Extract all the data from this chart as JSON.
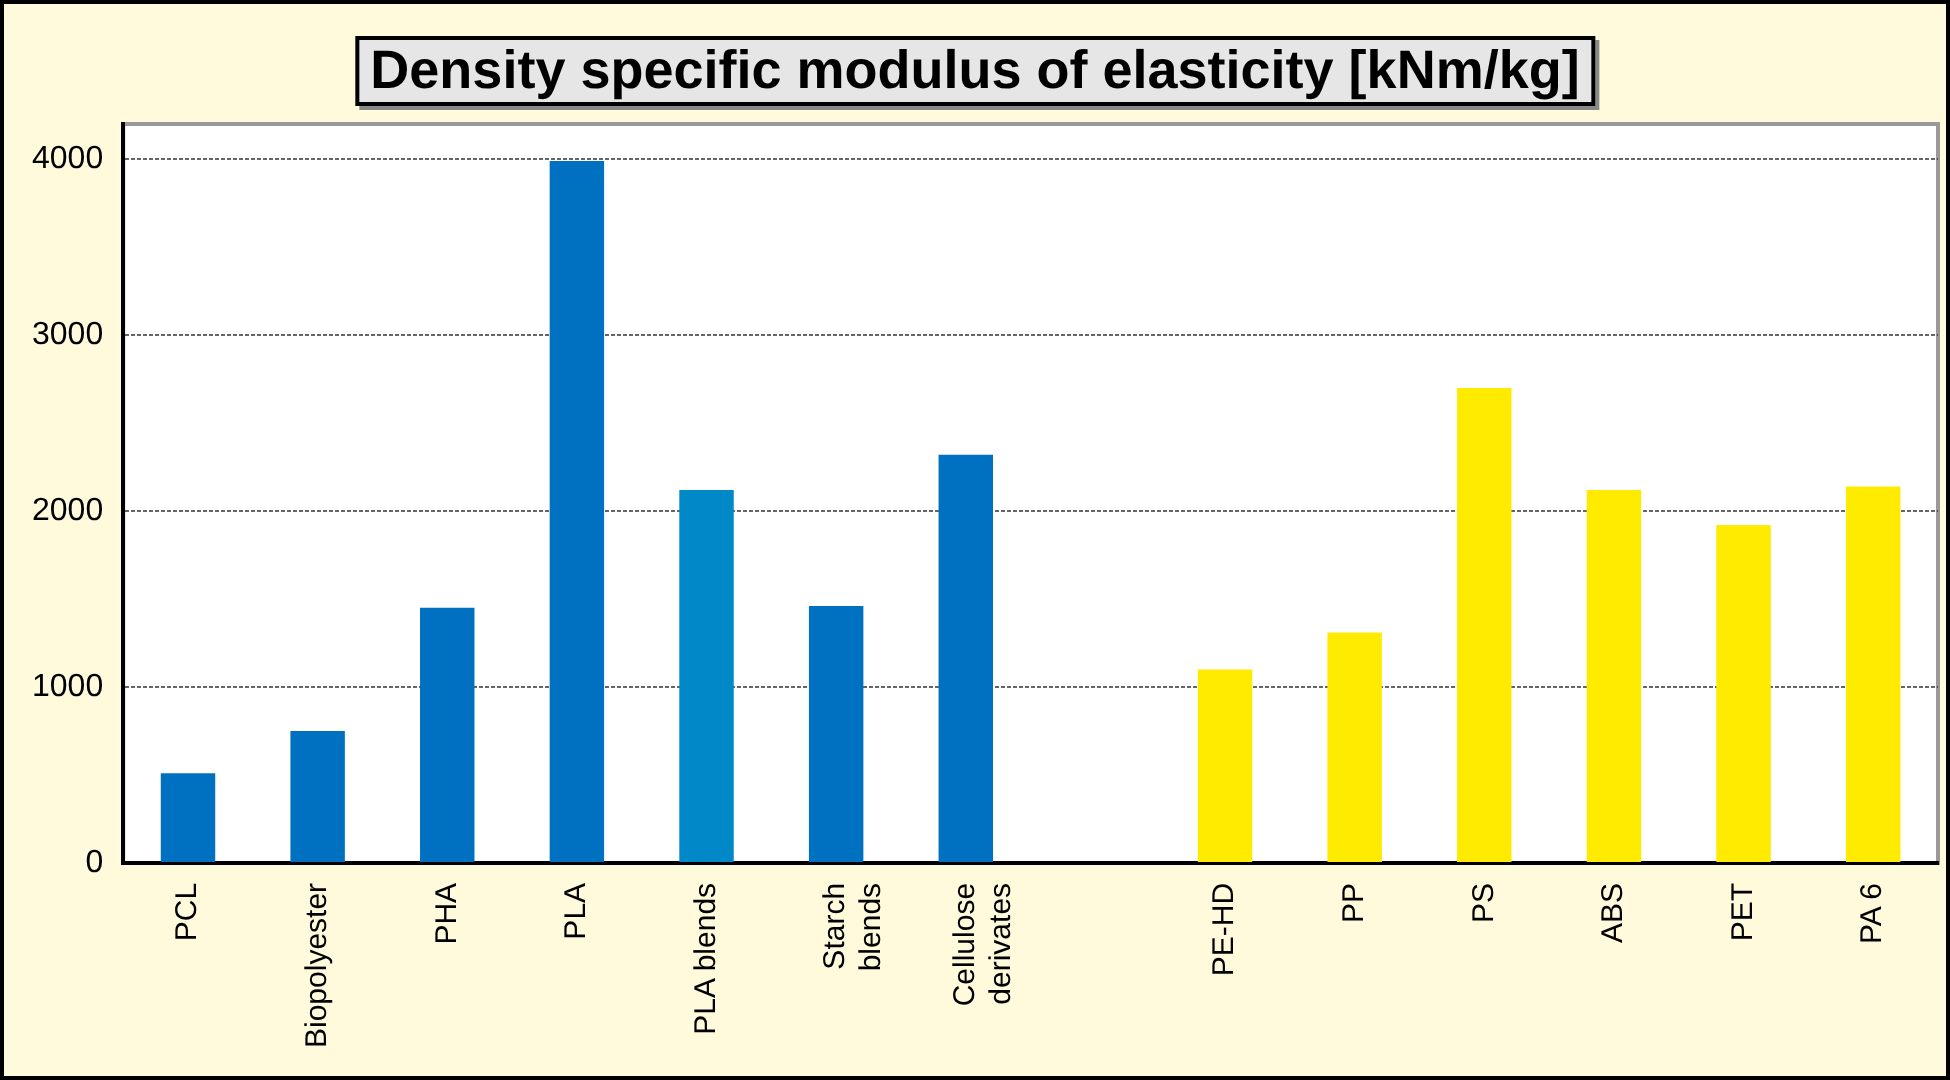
{
  "chart_data": {
    "type": "bar",
    "title": "Density specific modulus of elasticity [kNm/kg]",
    "categories": [
      "PCL",
      "Biopolyester",
      "PHA",
      "PLA",
      "PLA blends",
      "Starch blends",
      "Cellulose derivates",
      null,
      "PE-HD",
      "PP",
      "PS",
      "ABS",
      "PET",
      "PA 6"
    ],
    "values": [
      510,
      750,
      1450,
      3990,
      2120,
      1460,
      2320,
      null,
      1100,
      1310,
      2700,
      2120,
      1920,
      2140
    ],
    "colors": [
      "#0070c0",
      "#0070c0",
      "#0070c0",
      "#0070c0",
      "#0088c8",
      "#0070c0",
      "#0070c0",
      "#0070c0",
      "#ffeb00",
      "#ffeb00",
      "#ffeb00",
      "#ffeb00",
      "#ffeb00",
      "#ffeb00"
    ],
    "ylim": [
      0,
      4200
    ],
    "yticks": [
      0,
      1000,
      2000,
      3000,
      4000
    ],
    "grid": "y",
    "legend": false
  }
}
